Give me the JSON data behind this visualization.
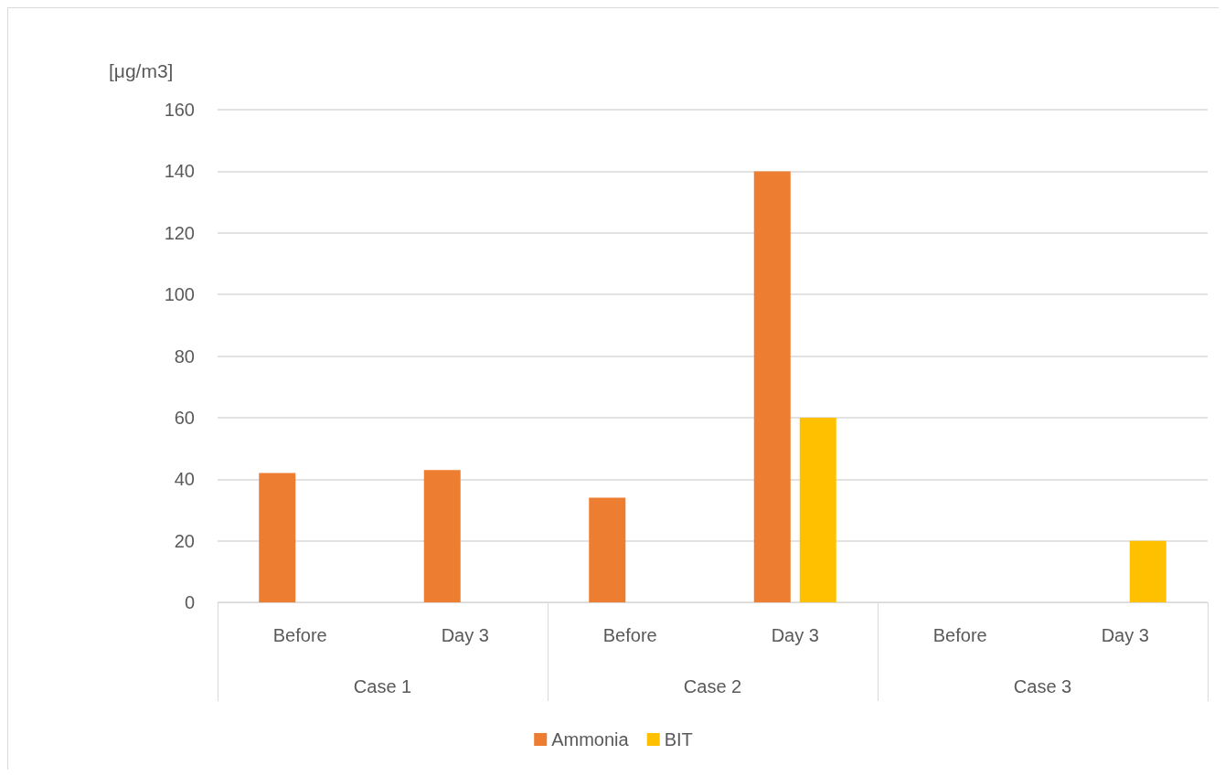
{
  "chart_data": {
    "type": "bar",
    "ylabel": "[μg/m3]",
    "categories": [
      "Before",
      "Day 3",
      "Before",
      "Day 3",
      "Before",
      "Day 3"
    ],
    "annotations": [
      "Case 1",
      "Case 2",
      "Case 3"
    ],
    "series": [
      {
        "name": "Ammonia",
        "color": "#ed7d31",
        "values": [
          42,
          43,
          34,
          140,
          0,
          0
        ]
      },
      {
        "name": "BIT",
        "color": "#ffc000",
        "values": [
          0,
          0,
          0,
          60,
          0,
          20
        ]
      }
    ],
    "ylim": [
      0,
      160
    ],
    "yticks": [
      0,
      20,
      40,
      60,
      80,
      100,
      120,
      140,
      160
    ],
    "grid": "y",
    "legend": "bottom"
  }
}
